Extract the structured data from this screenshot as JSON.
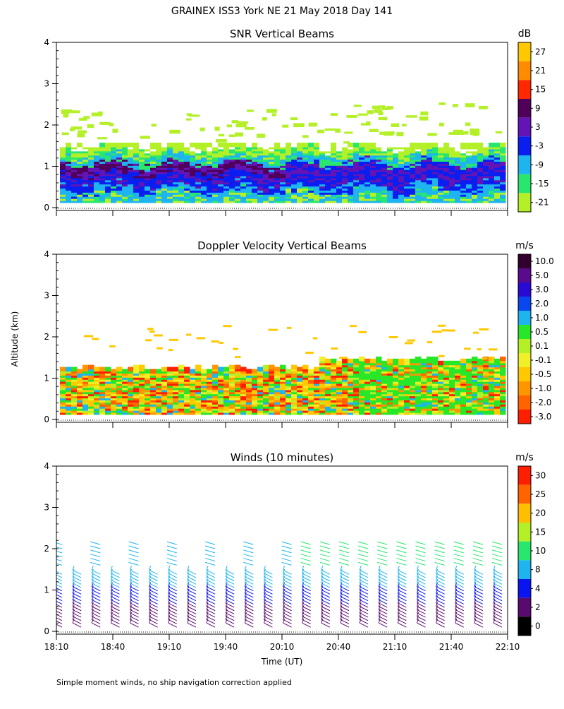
{
  "title": "GRAINEX ISS3 York NE  21 May 2018 Day 141",
  "shared_ylabel": "Altitude (km)",
  "shared_xlabel": "Time (UT)",
  "footnote": "Simple moment winds, no ship navigation correction applied",
  "chart_data": [
    {
      "type": "heatmap",
      "title": "SNR Vertical Beams",
      "xlabel": "",
      "ylabel": "Altitude (km)",
      "x_range": [
        "18:10",
        "22:10"
      ],
      "ylim": [
        0,
        4
      ],
      "y_ticks": [
        "0",
        "1",
        "2",
        "3",
        "4"
      ],
      "colorbar": {
        "unit": "dB",
        "ticks": [
          "27",
          "21",
          "15",
          "9",
          "3",
          "-3",
          "-9",
          "-15",
          "-21"
        ],
        "colors": [
          "#ffc800",
          "#ff8c00",
          "#ff2800",
          "#50005a",
          "#6414b4",
          "#0a1ef0",
          "#1eb4f0",
          "#28e66e",
          "#b4f028"
        ]
      },
      "bands": [
        {
          "alt_km": [
            0.1,
            0.5
          ],
          "level": "-9 to -3",
          "note": "light blue / green speckle"
        },
        {
          "alt_km": [
            0.5,
            1.1
          ],
          "level": "3 to 9",
          "note": "purple/blue core"
        },
        {
          "alt_km": [
            1.1,
            1.4
          ],
          "level": "-15 to -9",
          "note": "cyan/green"
        },
        {
          "alt_km": [
            1.4,
            1.5
          ],
          "level": "-21",
          "note": "yellow-green edge"
        }
      ]
    },
    {
      "type": "heatmap",
      "title": "Doppler Velocity Vertical Beams",
      "xlabel": "",
      "ylabel": "Altitude (km)",
      "x_range": [
        "18:10",
        "22:10"
      ],
      "ylim": [
        0,
        4
      ],
      "y_ticks": [
        "0",
        "1",
        "2",
        "3",
        "4"
      ],
      "colorbar": {
        "unit": "m/s",
        "ticks": [
          "10.0",
          "5.0",
          "3.0",
          "2.0",
          "1.0",
          "0.5",
          "0.1",
          "-0.1",
          "-0.5",
          "-1.0",
          "-2.0",
          "-3.0"
        ],
        "colors": [
          "#32002d",
          "#5a0a8c",
          "#280ad2",
          "#0a46f0",
          "#1eb4f0",
          "#28e628",
          "#b4f028",
          "#f0f028",
          "#ffc800",
          "#ff9600",
          "#ff6400",
          "#ff1e00"
        ]
      }
    },
    {
      "type": "wind_barbs",
      "title": "Winds (10 minutes)",
      "xlabel": "Time (UT)",
      "ylabel": "Altitude (km)",
      "x_ticks": [
        "18:10",
        "18:40",
        "19:10",
        "19:40",
        "20:10",
        "20:40",
        "21:10",
        "21:40",
        "22:10"
      ],
      "ylim": [
        0,
        4
      ],
      "y_ticks": [
        "0",
        "1",
        "2",
        "3",
        "4"
      ],
      "colorbar": {
        "unit": "m/s",
        "ticks": [
          "30",
          "25",
          "20",
          "15",
          "10",
          "8",
          "4",
          "2",
          "0"
        ],
        "colors": [
          "#ff1e00",
          "#ff6400",
          "#ffbe00",
          "#b4f028",
          "#28e66e",
          "#1eb4f0",
          "#0a14f0",
          "#5a0a6e",
          "#000000"
        ]
      },
      "times_utc": [
        "18:10",
        "18:20",
        "18:30",
        "18:40",
        "18:50",
        "19:00",
        "19:10",
        "19:20",
        "19:30",
        "19:40",
        "19:50",
        "20:00",
        "20:10",
        "20:20",
        "20:30",
        "20:40",
        "20:50",
        "21:00",
        "21:10",
        "21:20",
        "21:30",
        "21:40",
        "21:50",
        "22:00"
      ]
    }
  ]
}
